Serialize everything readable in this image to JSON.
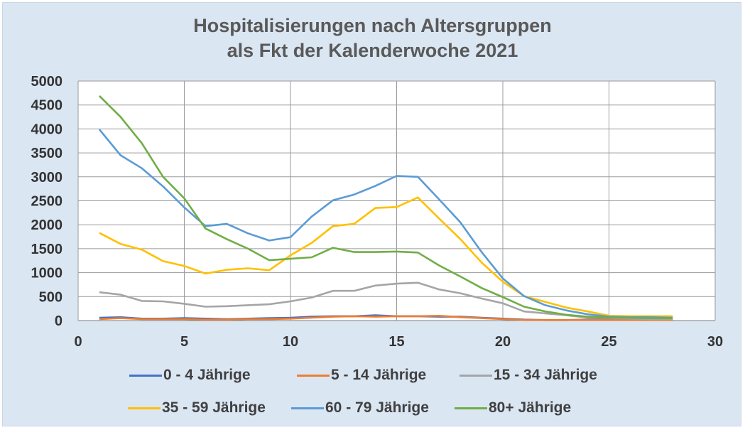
{
  "chart_data": {
    "type": "line",
    "title_line1": "Hospitalisierungen nach Altersgruppen",
    "title_line2": "als Fkt der Kalenderwoche 2021",
    "xlabel": "",
    "ylabel": "",
    "xlim": [
      0,
      30
    ],
    "ylim": [
      0,
      5000
    ],
    "xticks": [
      0,
      5,
      10,
      15,
      20,
      25,
      30
    ],
    "yticks": [
      0,
      500,
      1000,
      1500,
      2000,
      2500,
      3000,
      3500,
      4000,
      4500,
      5000
    ],
    "grid": true,
    "legend_position": "bottom",
    "x": [
      1,
      2,
      3,
      4,
      5,
      6,
      7,
      8,
      9,
      10,
      11,
      12,
      13,
      14,
      15,
      16,
      17,
      18,
      19,
      20,
      21,
      22,
      23,
      24,
      25,
      26,
      27,
      28
    ],
    "series": [
      {
        "name": "0 - 4 Jährige",
        "color": "#4472c4",
        "values": [
          60,
          70,
          40,
          40,
          50,
          40,
          30,
          40,
          50,
          60,
          80,
          90,
          90,
          110,
          90,
          90,
          80,
          80,
          60,
          40,
          20,
          10,
          10,
          20,
          20,
          20,
          20,
          20
        ]
      },
      {
        "name": "5 - 14 Jährige",
        "color": "#ed7d31",
        "values": [
          30,
          50,
          30,
          30,
          30,
          20,
          20,
          30,
          30,
          40,
          60,
          80,
          90,
          80,
          90,
          90,
          100,
          70,
          50,
          30,
          10,
          10,
          10,
          10,
          10,
          10,
          10,
          10
        ]
      },
      {
        "name": "15 - 34 Jährige",
        "color": "#a5a5a5",
        "values": [
          590,
          540,
          410,
          400,
          350,
          290,
          300,
          320,
          340,
          400,
          480,
          620,
          620,
          730,
          770,
          790,
          650,
          570,
          460,
          360,
          190,
          150,
          110,
          60,
          50,
          40,
          30,
          30
        ]
      },
      {
        "name": "35 - 59 Jährige",
        "color": "#ffc000",
        "values": [
          1830,
          1600,
          1480,
          1240,
          1140,
          980,
          1060,
          1090,
          1050,
          1360,
          1620,
          1970,
          2020,
          2350,
          2370,
          2570,
          2130,
          1700,
          1210,
          810,
          510,
          390,
          270,
          190,
          100,
          90,
          90,
          90
        ]
      },
      {
        "name": "60 - 79 Jährige",
        "color": "#5b9bd5",
        "values": [
          3990,
          3450,
          3180,
          2800,
          2360,
          1970,
          2020,
          1820,
          1670,
          1740,
          2170,
          2510,
          2630,
          2810,
          3020,
          3000,
          2530,
          2050,
          1430,
          880,
          510,
          320,
          210,
          130,
          80,
          70,
          70,
          60
        ]
      },
      {
        "name": "80+ Jährige",
        "color": "#70ad47",
        "values": [
          4690,
          4250,
          3700,
          3000,
          2550,
          1920,
          1700,
          1500,
          1260,
          1290,
          1320,
          1520,
          1430,
          1430,
          1440,
          1420,
          1150,
          920,
          680,
          490,
          290,
          190,
          120,
          80,
          60,
          60,
          50,
          50
        ]
      }
    ]
  }
}
